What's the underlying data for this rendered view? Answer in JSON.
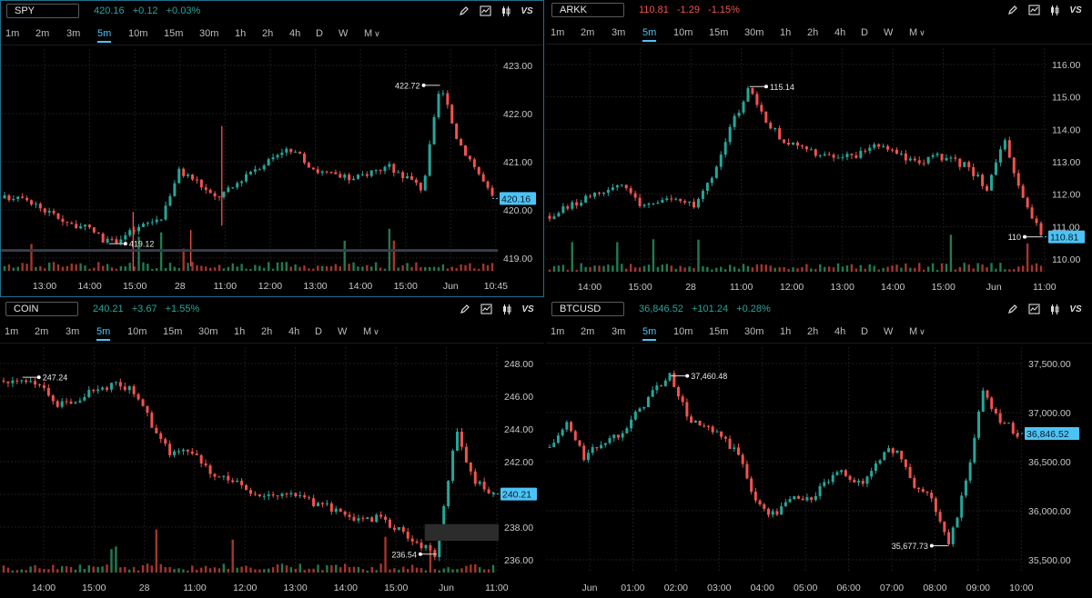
{
  "timeframes": [
    "1m",
    "2m",
    "3m",
    "5m",
    "10m",
    "15m",
    "30m",
    "1h",
    "2h",
    "4h",
    "D",
    "W",
    "M"
  ],
  "active_timeframe": "5m",
  "colors": {
    "up": "#26a69a",
    "down": "#ef5350",
    "bull_bar": "#2fa36b",
    "bear_bar": "#d9473f",
    "accent": "#4cc3f5",
    "grid": "#1c1c1c",
    "axis_text": "#c8c8c8"
  },
  "icons": [
    "pencil-icon",
    "chart-icon",
    "candle-icon",
    "vs-icon"
  ],
  "panes": [
    {
      "symbol": "SPY",
      "last": "420.16",
      "change": "+0.12",
      "change_pct": "+0.03%",
      "direction": "up",
      "chart_data": {
        "type": "candlestick",
        "y_ticks": [
          "423.00",
          "422.00",
          "421.00",
          "420.00",
          "419.00"
        ],
        "x_ticks": [
          "13:00",
          "14:00",
          "15:00",
          "28",
          "11:00",
          "12:00",
          "13:00",
          "14:00",
          "15:00",
          "Jun",
          "10:45"
        ],
        "price_label": "420.16",
        "annotations": [
          {
            "text": "422.72"
          },
          {
            "text": "419.12"
          }
        ],
        "ylim": [
          418.6,
          423.5
        ],
        "path": [
          420.2,
          420.3,
          420.0,
          419.8,
          419.6,
          419.5,
          419.2,
          419.4,
          419.6,
          419.8,
          420.8,
          420.6,
          420.2,
          420.4,
          420.8,
          421.0,
          421.3,
          421.1,
          420.8,
          420.7,
          420.6,
          420.8,
          420.9,
          420.7,
          420.4,
          422.7,
          421.5,
          420.9,
          420.2
        ],
        "wicks": [
          [
            29,
            418.6,
            419.9
          ],
          [
            42,
            418.7,
            419.5
          ],
          [
            49,
            419.6,
            421.8
          ]
        ],
        "horizontal_line": 419.05
      }
    },
    {
      "symbol": "ARKK",
      "last": "110.81",
      "change": "-1.29",
      "change_pct": "-1.15%",
      "direction": "down",
      "chart_data": {
        "type": "candlestick",
        "y_ticks": [
          "116.00",
          "115.00",
          "114.00",
          "113.00",
          "112.00",
          "111.00",
          "110.00"
        ],
        "x_ticks": [
          "14:00",
          "15:00",
          "28",
          "11:00",
          "12:00",
          "13:00",
          "14:00",
          "15:00",
          "Jun",
          "11:00"
        ],
        "price_label": "110.81",
        "annotations": [
          {
            "text": "115.14"
          },
          {
            "text": "110"
          }
        ],
        "ylim": [
          109.8,
          116.2
        ],
        "path": [
          111.4,
          111.7,
          111.9,
          112.1,
          112.3,
          111.7,
          111.9,
          111.8,
          111.7,
          112.5,
          114.0,
          115.1,
          114.0,
          113.5,
          113.3,
          113.1,
          113.0,
          113.2,
          113.4,
          113.2,
          112.9,
          113.1,
          113.0,
          112.8,
          112.2,
          113.5,
          112.0,
          110.8
        ]
      }
    },
    {
      "symbol": "COIN",
      "last": "240.21",
      "change": "+3.67",
      "change_pct": "+1.55%",
      "direction": "up",
      "chart_data": {
        "type": "candlestick",
        "y_ticks": [
          "248.00",
          "246.00",
          "244.00",
          "242.00",
          "240.00",
          "238.00",
          "236.00"
        ],
        "x_ticks": [
          "14:00",
          "15:00",
          "28",
          "11:00",
          "12:00",
          "13:00",
          "14:00",
          "15:00",
          "Jun",
          "11:00"
        ],
        "price_label": "240.21",
        "annotations": [
          {
            "text": "247.24"
          },
          {
            "text": "236.54"
          }
        ],
        "ylim": [
          235.5,
          249.0
        ],
        "path": [
          247.0,
          247.2,
          246.5,
          245.5,
          246.0,
          246.5,
          246.8,
          246.3,
          244.0,
          242.5,
          242.8,
          241.5,
          241.0,
          240.5,
          240.0,
          240.2,
          239.8,
          239.5,
          239.0,
          238.5,
          238.8,
          238.0,
          237.2,
          236.6,
          244.0,
          241.0,
          240.2
        ],
        "gap_box": [
          237.4,
          238.4
        ]
      }
    },
    {
      "symbol": "BTCUSD",
      "last": "36,846.52",
      "change": "+101.24",
      "change_pct": "+0.28%",
      "direction": "up",
      "chart_data": {
        "type": "candlestick",
        "y_ticks": [
          "37,500.00",
          "37,000.00",
          "36,500.00",
          "36,000.00",
          "35,500.00"
        ],
        "x_ticks": [
          "Jun",
          "01:00",
          "02:00",
          "03:00",
          "04:00",
          "05:00",
          "06:00",
          "07:00",
          "08:00",
          "09:00",
          "10:00"
        ],
        "price_label": "36,846.52",
        "annotations": [
          {
            "text": "37,460.48"
          },
          {
            "text": "35,677.73"
          }
        ],
        "ylim": [
          35400,
          37750
        ],
        "path": [
          36700,
          36950,
          36600,
          36750,
          36850,
          37050,
          37300,
          37450,
          37000,
          36900,
          36800,
          36600,
          36100,
          36000,
          36200,
          36150,
          36350,
          36450,
          36300,
          36600,
          36700,
          36300,
          36200,
          35680,
          36300,
          37300,
          37000,
          36850
        ]
      }
    }
  ]
}
